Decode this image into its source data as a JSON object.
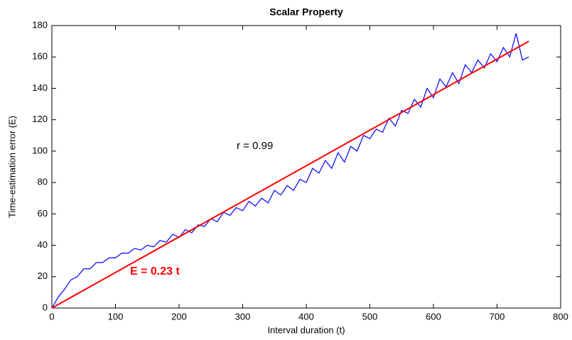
{
  "chart_data": {
    "type": "line",
    "title": "Scalar Property",
    "x_label": "Interval duration (t)",
    "y_label": "Time-estimation error (E)",
    "annotations": [
      "r = 0.99",
      "E = 0.23 t"
    ],
    "xlim": [
      0,
      800
    ],
    "xticks": [
      0,
      100,
      200,
      300,
      400,
      500,
      600,
      700,
      800
    ],
    "ylim": [
      0,
      180
    ],
    "yticks": [
      0,
      20,
      40,
      60,
      80,
      100,
      120,
      140,
      160,
      180
    ],
    "series": [
      {
        "color": "#0000ff",
        "x": [
          0,
          10,
          20,
          30,
          40,
          50,
          60,
          70,
          80,
          90,
          100,
          110,
          120,
          130,
          140,
          150,
          160,
          170,
          180,
          190,
          200,
          210,
          220,
          230,
          240,
          250,
          260,
          270,
          280,
          290,
          300,
          310,
          320,
          330,
          340,
          350,
          360,
          370,
          380,
          390,
          400,
          410,
          420,
          430,
          440,
          450,
          460,
          470,
          480,
          490,
          500,
          510,
          520,
          530,
          540,
          550,
          560,
          570,
          580,
          590,
          600,
          610,
          620,
          630,
          640,
          650,
          660,
          670,
          680,
          690,
          700,
          710,
          720,
          730,
          740,
          750
        ],
        "values": [
          0,
          7,
          12,
          18,
          20,
          25,
          25,
          29,
          29,
          32,
          32,
          35,
          35,
          38,
          37,
          40,
          39,
          43,
          42,
          47,
          45,
          50,
          48,
          53,
          52,
          57,
          55,
          61,
          59,
          64,
          62,
          68,
          65,
          70,
          67,
          75,
          72,
          78,
          75,
          82,
          80,
          89,
          86,
          94,
          89,
          99,
          93,
          103,
          100,
          110,
          108,
          114,
          112,
          121,
          116,
          126,
          124,
          133,
          128,
          140,
          134,
          146,
          141,
          150,
          143,
          155,
          150,
          158,
          153,
          162,
          157,
          166,
          160,
          175,
          158,
          160
        ]
      },
      {
        "color": "#ff0000",
        "x": [
          0,
          750
        ],
        "values": [
          0,
          170
        ]
      }
    ]
  }
}
